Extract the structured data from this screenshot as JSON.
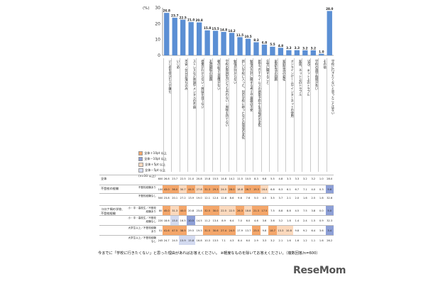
{
  "chart_data": {
    "type": "bar",
    "y_unit": "(%)",
    "yticks": [
      0,
      10,
      20,
      30
    ],
    "ylim": [
      0,
      30
    ],
    "categories": [
      "いじめを受けた人が嫌だ",
      "いじめ",
      "不安・気分が落ち込み",
      "ストレスなど体調やメンタルの不調",
      "授業がわからない・興味を持てない",
      "友達関係の問題",
      "朝の起きる習慣がない",
      "学校の雰囲気がどうも合わない・興味を持てない",
      "勉強が分からない",
      "新しい学校に入った、別の学校に移ったなどの環境の変化",
      "勉強の方針に関する考えや進路の不安",
      "新型コロナウイルスの感染予防や生活様式の変化",
      "先生に関すること",
      "家族生活の問題",
      "家庭生活の変化",
      "オンラインゲームやインターネットの使用",
      "家族、ネット上のトラブル",
      "SNS、ネット上のトラブル",
      "学校の通学時間が長い",
      "その他",
      "学校に行きたくないと思ったことはない"
    ],
    "values": [
      26.8,
      23.7,
      22.5,
      21.0,
      20.8,
      15.8,
      15.5,
      14.8,
      14.2,
      11.5,
      10.5,
      8.3,
      6.8,
      5.5,
      4.8,
      3.3,
      3.3,
      3.2,
      3.2,
      1.0,
      28.0
    ],
    "value_labels": [
      "26.8",
      "23.7",
      "22.5",
      "21.0",
      "20.8",
      "15.8",
      "15.5",
      "14.8",
      "14.2",
      "11.5",
      "10.5",
      "8.3",
      "6.8",
      "5.5",
      "4.8",
      "3.3",
      "3.3",
      "3.2",
      "3.2",
      "1.0",
      "28.0"
    ]
  },
  "legend": {
    "items": [
      {
        "label": "全体＋10pt 以上",
        "color": "#f4a66a"
      },
      {
        "label": "全体－10pt 以上",
        "color": "#8d9fd6"
      },
      {
        "label": "全体＋5pt 以上",
        "color": "#fbd9bd"
      },
      {
        "label": "全体－5pt 以上",
        "color": "#d3daf0"
      }
    ],
    "note": "(n=30 以上)"
  },
  "table": {
    "rows": [
      {
        "group": "全体",
        "sub": "",
        "n": "600",
        "cells": [
          "26.8",
          "23.7",
          "22.5",
          "21.0",
          "20.8",
          "15.8",
          "15.5",
          "14.8",
          "14.2",
          "11.5",
          "10.5",
          "8.3",
          "6.8",
          "5.5",
          "4.8",
          "3.3",
          "3.3",
          "3.2",
          "3.2",
          "1.0",
          "28.0"
        ],
        "hl": []
      },
      {
        "group": "不登校の経験",
        "sub": "不登校経験あり",
        "n": "100",
        "cells": [
          "43.0",
          "36.0",
          "30.7",
          "44.5",
          "27.8",
          "31.3",
          "29.3",
          "24.5",
          "28.0",
          "18.8",
          "26.7",
          "19.3",
          "16.4",
          "6.8",
          "6.3",
          "6.1",
          "6.7",
          "7.1",
          "4.0",
          "0.3",
          "9.6"
        ],
        "hl": [
          "p10",
          "p10",
          "p5",
          "p10",
          "p5",
          "p10",
          "p10",
          "p5",
          "p10",
          "p5",
          "p10",
          "p10",
          "p5",
          "",
          "",
          "",
          "",
          "",
          "",
          "",
          "m10"
        ]
      },
      {
        "group": "",
        "sub": "不登校経験なし",
        "n": "500",
        "cells": [
          "23.8",
          "20.1",
          "27.2",
          "13.9",
          "19.0",
          "12.1",
          "12.4",
          "12.6",
          "8.6",
          "9.6",
          "7.6",
          "5.0",
          "4.5",
          "3.5",
          "3.7",
          "2.1",
          "2.0",
          "1.6",
          "2.5",
          "1.6",
          "32.6"
        ],
        "hl": [
          "",
          "",
          "",
          "",
          "",
          "",
          "",
          "",
          "",
          "",
          "",
          "",
          "",
          "",
          "",
          "",
          "",
          "",
          "",
          "",
          ""
        ]
      },
      {
        "group": "コロナ禍の学校、不登校経験",
        "sub": "小・中・高校生／不登校経験あり",
        "n": "80",
        "cells": [
          "45.0",
          "31.3",
          "40.0",
          "20.8",
          "23.8",
          "32.5",
          "30.0",
          "22.5",
          "22.5",
          "26.3",
          "18.8",
          "21.3",
          "17.5",
          "7.5",
          "8.8",
          "8.8",
          "4.5",
          "7.5",
          "3.8",
          "0.0",
          "5.0"
        ],
        "hl": [
          "p10",
          "p5",
          "p10",
          "",
          "",
          "p10",
          "p10",
          "p5",
          "p5",
          "p10",
          "p5",
          "p10",
          "p10",
          "",
          "",
          "",
          "",
          "",
          "",
          "",
          "m10"
        ]
      },
      {
        "group": "",
        "sub": "小・中・高校生／不登校経験なし",
        "n": "220",
        "cells": [
          "18.6",
          "15.0",
          "16.5",
          "10.5",
          "14.5",
          "11.2",
          "13.4",
          "8.9",
          "6.4",
          "7.0",
          "6.0",
          "4.6",
          "3.6",
          "3.6",
          "3.2",
          "1.8",
          "1.4",
          "2.4",
          "1.5",
          "0.9",
          "32.3"
        ],
        "hl": [
          "",
          "m5",
          "",
          "m10",
          "",
          "",
          "",
          "",
          "",
          "",
          "",
          "",
          "",
          "",
          "",
          "",
          "",
          "",
          "",
          "",
          ""
        ]
      },
      {
        "group": "",
        "sub": "大学生以上／不登校経験あり",
        "n": "51",
        "cells": [
          "41.6",
          "47.5",
          "38.5",
          "29.5",
          "19.5",
          "31.5",
          "30.6",
          "27.4",
          "24.5",
          "17.9",
          "13.7",
          "23.5",
          "9.8",
          "18.7",
          "13.3",
          "10.8",
          "9.8",
          "9.2",
          "6.4",
          "3.6",
          "3.4"
        ],
        "hl": [
          "p10",
          "p10",
          "p10",
          "",
          "",
          "p10",
          "p10",
          "p10",
          "p10",
          "",
          "",
          "p10",
          "",
          "p10",
          "p5",
          "p5",
          "",
          "",
          "",
          "",
          "m10"
        ]
      },
      {
        "group": "",
        "sub": "大学生以上／不登校経験なし",
        "n": "245",
        "cells": [
          "24.7",
          "24.5",
          "15.9",
          "15.8",
          "16.8",
          "10.3",
          "13.5",
          "7.1",
          "4.3",
          "8.4",
          "6.0",
          "2.9",
          "3.3",
          "3.2",
          "2.1",
          "1.6",
          "1.6",
          "1.2",
          "1.1",
          "1.6",
          "26.2"
        ],
        "hl": [
          "",
          "",
          "m5",
          "m5",
          "",
          "",
          "",
          "",
          "",
          "",
          "",
          "",
          "",
          "",
          "",
          "",
          "",
          "",
          "",
          "",
          ""
        ]
      }
    ]
  },
  "footnote": "今までに「学校に行きたくない」と思った理由があればお答えください。 ※軽度なものを除いてお答えください。（複数回答/n=600）",
  "logo": "ReseMom"
}
